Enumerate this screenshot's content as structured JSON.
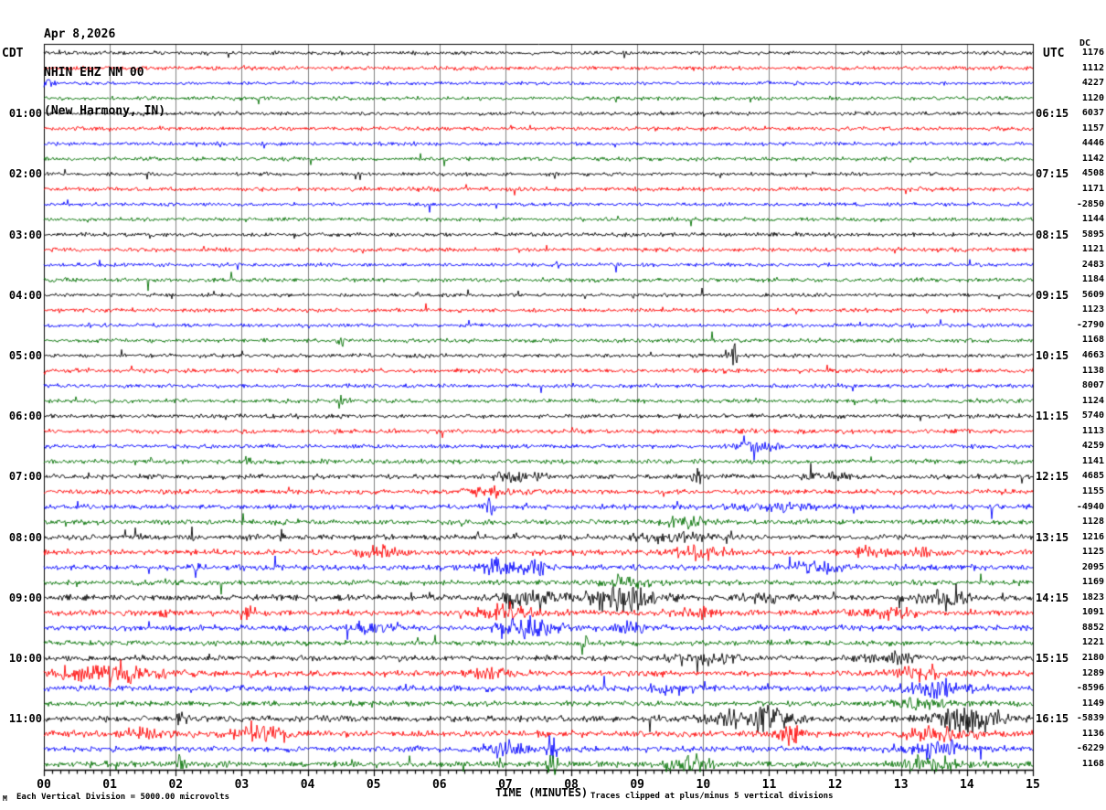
{
  "header": {
    "date": "Apr 8,2026",
    "station": "NHIN EHZ NM 00",
    "location": "(New Harmony, IN)"
  },
  "axes": {
    "left_label": "CDT",
    "right_label": "UTC",
    "right_sub_label": "DC",
    "x_title": "TIME (MINUTES)",
    "x_ticks": [
      "00",
      "01",
      "02",
      "03",
      "04",
      "05",
      "06",
      "07",
      "08",
      "09",
      "10",
      "11",
      "12",
      "13",
      "14",
      "15"
    ]
  },
  "footer": {
    "scale_note": "Each Vertical Division = 5000.00 microvolts",
    "clip_note": "Traces clipped at plus/minus 5 vertical divisions",
    "watermark": "M"
  },
  "chart_data": {
    "type": "line",
    "kind": "seismogram-helicorder",
    "title": "NHIN EHZ NM 00 (New Harmony, IN) Apr 8,2026",
    "xlabel": "TIME (MINUTES)",
    "x_range": [
      0,
      15
    ],
    "minutes_per_line": 15,
    "lines_per_hour": 4,
    "colors": {
      "black": "#000000",
      "red": "#ff0000",
      "blue": "#0000ff",
      "green": "#007000",
      "grid": "#808080"
    },
    "rows": [
      {
        "color": "black",
        "value": "1176",
        "amp": 1.7,
        "events": []
      },
      {
        "color": "red",
        "value": "1112",
        "amp": 1.9,
        "events": []
      },
      {
        "color": "blue",
        "value": "4227",
        "amp": 1.6,
        "events": [
          [
            0.05,
            0.1,
            5
          ]
        ]
      },
      {
        "color": "green",
        "value": "1120",
        "amp": 1.8,
        "events": []
      },
      {
        "color": "black",
        "value": "6037",
        "cdt": "01:00",
        "utc": "06:15",
        "amp": 1.7,
        "events": []
      },
      {
        "color": "red",
        "value": "1157",
        "amp": 1.9,
        "events": []
      },
      {
        "color": "blue",
        "value": "4446",
        "amp": 1.7,
        "events": []
      },
      {
        "color": "green",
        "value": "1142",
        "amp": 1.8,
        "events": []
      },
      {
        "color": "black",
        "value": "4508",
        "cdt": "02:00",
        "utc": "07:15",
        "amp": 1.7,
        "events": []
      },
      {
        "color": "red",
        "value": "1171",
        "amp": 1.9,
        "events": []
      },
      {
        "color": "blue",
        "value": "-2850",
        "amp": 1.7,
        "events": []
      },
      {
        "color": "green",
        "value": "1144",
        "amp": 1.8,
        "events": []
      },
      {
        "color": "black",
        "value": "5895",
        "cdt": "03:00",
        "utc": "08:15",
        "amp": 1.8,
        "events": []
      },
      {
        "color": "red",
        "value": "1121",
        "amp": 1.9,
        "events": []
      },
      {
        "color": "blue",
        "value": "2483",
        "amp": 1.8,
        "events": []
      },
      {
        "color": "green",
        "value": "1184",
        "amp": 1.9,
        "events": []
      },
      {
        "color": "black",
        "value": "5609",
        "cdt": "04:00",
        "utc": "09:15",
        "amp": 1.7,
        "events": []
      },
      {
        "color": "red",
        "value": "1123",
        "amp": 1.9,
        "events": []
      },
      {
        "color": "blue",
        "value": "-2790",
        "amp": 1.8,
        "events": []
      },
      {
        "color": "green",
        "value": "1168",
        "amp": 1.9,
        "events": [
          [
            4.5,
            0.05,
            5
          ]
        ]
      },
      {
        "color": "black",
        "value": "4663",
        "cdt": "05:00",
        "utc": "10:15",
        "amp": 1.8,
        "events": [
          [
            10.45,
            0.12,
            6
          ],
          [
            10.47,
            0.04,
            12
          ]
        ]
      },
      {
        "color": "red",
        "value": "1138",
        "amp": 2.0,
        "events": []
      },
      {
        "color": "blue",
        "value": "8007",
        "amp": 1.9,
        "events": []
      },
      {
        "color": "green",
        "value": "1124",
        "amp": 2.0,
        "events": [
          [
            4.5,
            0.05,
            5
          ]
        ]
      },
      {
        "color": "black",
        "value": "5740",
        "cdt": "06:00",
        "utc": "11:15",
        "amp": 1.9,
        "events": []
      },
      {
        "color": "red",
        "value": "1113",
        "amp": 2.1,
        "events": []
      },
      {
        "color": "blue",
        "value": "4259",
        "amp": 2.0,
        "events": [
          [
            10.8,
            0.3,
            4
          ]
        ]
      },
      {
        "color": "green",
        "value": "1141",
        "amp": 2.1,
        "events": [
          [
            3.1,
            0.05,
            6
          ]
        ]
      },
      {
        "color": "black",
        "value": "4685",
        "cdt": "07:00",
        "utc": "12:15",
        "amp": 2.2,
        "events": [
          [
            7.2,
            0.3,
            5
          ],
          [
            9.9,
            0.05,
            12
          ],
          [
            11.9,
            0.3,
            4
          ]
        ]
      },
      {
        "color": "red",
        "value": "1155",
        "amp": 2.3,
        "events": [
          [
            6.7,
            0.4,
            4
          ]
        ]
      },
      {
        "color": "blue",
        "value": "-4940",
        "amp": 2.3,
        "events": [
          [
            6.75,
            0.08,
            8
          ],
          [
            11.1,
            0.5,
            4
          ]
        ]
      },
      {
        "color": "green",
        "value": "1128",
        "amp": 2.4,
        "events": [
          [
            9.7,
            0.4,
            4
          ]
        ]
      },
      {
        "color": "black",
        "value": "1216",
        "cdt": "08:00",
        "utc": "13:15",
        "amp": 2.5,
        "events": [
          [
            1.4,
            0.05,
            8
          ],
          [
            2.25,
            0.05,
            10
          ],
          [
            3.6,
            0.05,
            5
          ],
          [
            9.5,
            0.5,
            4
          ]
        ]
      },
      {
        "color": "red",
        "value": "1125",
        "amp": 2.6,
        "events": [
          [
            5.1,
            0.3,
            6
          ],
          [
            10.0,
            0.4,
            5
          ],
          [
            12.5,
            0.3,
            4
          ],
          [
            13.4,
            0.3,
            4
          ]
        ]
      },
      {
        "color": "blue",
        "value": "2095",
        "amp": 2.6,
        "events": [
          [
            2.3,
            0.05,
            8
          ],
          [
            6.9,
            0.25,
            8
          ],
          [
            7.4,
            0.2,
            9
          ],
          [
            11.7,
            0.4,
            5
          ]
        ]
      },
      {
        "color": "green",
        "value": "1169",
        "amp": 2.5,
        "events": [
          [
            8.8,
            0.3,
            5
          ]
        ]
      },
      {
        "color": "black",
        "value": "1823",
        "cdt": "09:00",
        "utc": "14:15",
        "amp": 2.7,
        "events": [
          [
            7.3,
            0.4,
            10
          ],
          [
            8.8,
            0.5,
            14
          ],
          [
            10.9,
            0.3,
            5
          ],
          [
            13.6,
            0.4,
            7
          ]
        ]
      },
      {
        "color": "red",
        "value": "1091",
        "amp": 2.7,
        "events": [
          [
            1.85,
            0.06,
            6
          ],
          [
            3.1,
            0.1,
            11
          ],
          [
            7.0,
            0.4,
            7
          ],
          [
            9.9,
            0.3,
            5
          ],
          [
            12.8,
            0.4,
            5
          ]
        ]
      },
      {
        "color": "blue",
        "value": "8852",
        "amp": 2.7,
        "events": [
          [
            5.0,
            0.3,
            7
          ],
          [
            7.3,
            0.5,
            8
          ],
          [
            9.0,
            0.3,
            5
          ]
        ]
      },
      {
        "color": "green",
        "value": "1221",
        "amp": 2.4,
        "events": [
          [
            8.2,
            0.05,
            14
          ]
        ]
      },
      {
        "color": "black",
        "value": "2180",
        "cdt": "10:00",
        "utc": "15:15",
        "amp": 2.6,
        "events": [
          [
            10.0,
            0.4,
            7
          ],
          [
            12.8,
            0.4,
            5
          ]
        ]
      },
      {
        "color": "red",
        "value": "1289",
        "amp": 2.8,
        "events": [
          [
            1.0,
            0.8,
            7
          ],
          [
            6.8,
            0.3,
            5
          ],
          [
            13.3,
            0.3,
            6
          ]
        ]
      },
      {
        "color": "blue",
        "value": "-8596",
        "amp": 2.7,
        "events": [
          [
            9.5,
            0.3,
            5
          ],
          [
            13.6,
            0.5,
            7
          ]
        ]
      },
      {
        "color": "green",
        "value": "1149",
        "amp": 2.5,
        "events": [
          [
            13.3,
            0.4,
            4
          ]
        ]
      },
      {
        "color": "black",
        "value": "-5839",
        "cdt": "11:00",
        "utc": "16:15",
        "amp": 2.8,
        "events": [
          [
            2.1,
            0.1,
            7
          ],
          [
            10.5,
            0.5,
            7
          ],
          [
            11.0,
            0.3,
            9
          ],
          [
            14.0,
            0.5,
            11
          ]
        ]
      },
      {
        "color": "red",
        "value": "1136",
        "amp": 3.0,
        "events": [
          [
            1.6,
            0.3,
            6
          ],
          [
            3.3,
            0.4,
            9
          ],
          [
            11.3,
            0.15,
            13
          ],
          [
            13.5,
            0.4,
            6
          ]
        ]
      },
      {
        "color": "blue",
        "value": "-6229",
        "amp": 2.8,
        "events": [
          [
            7.0,
            0.3,
            6
          ],
          [
            7.7,
            0.08,
            10
          ],
          [
            13.5,
            0.5,
            7
          ]
        ]
      },
      {
        "color": "green",
        "value": "1168",
        "amp": 2.8,
        "events": [
          [
            2.05,
            0.06,
            8
          ],
          [
            7.7,
            0.08,
            13
          ],
          [
            9.8,
            0.3,
            7
          ],
          [
            13.4,
            0.4,
            6
          ]
        ]
      }
    ]
  }
}
